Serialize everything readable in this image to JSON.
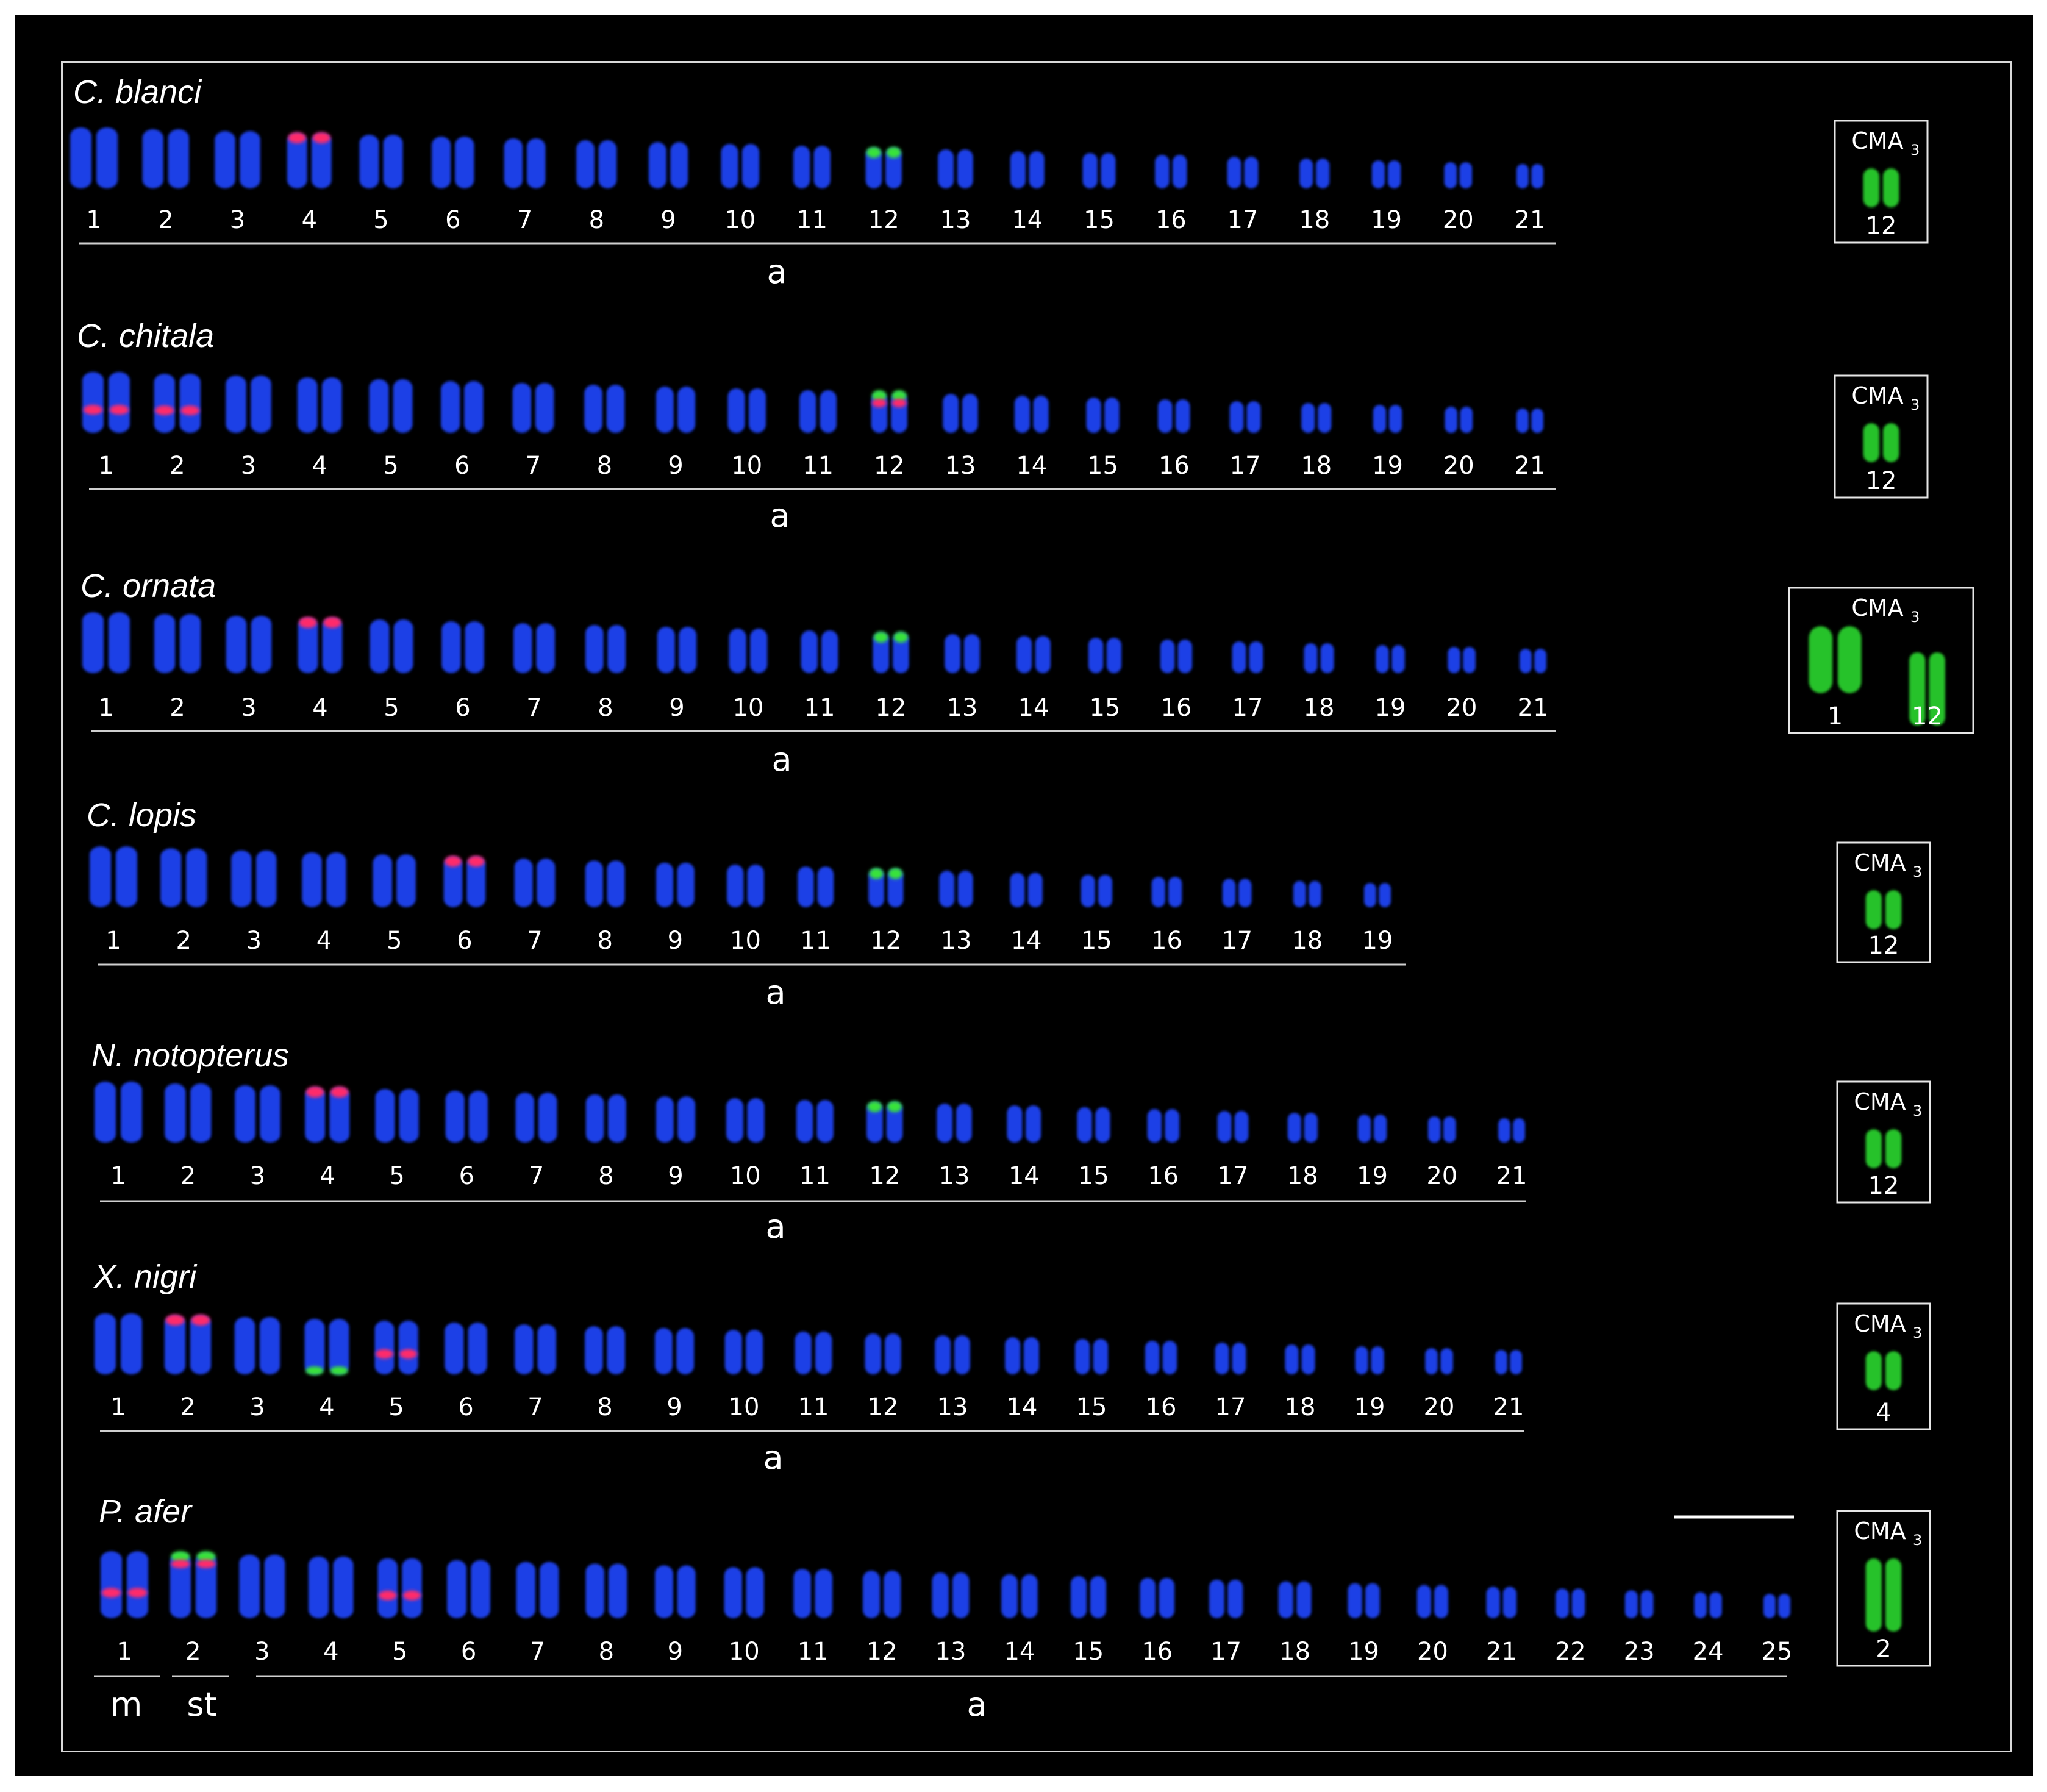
{
  "figure": {
    "colors": {
      "background": "#000000",
      "frame": "#d9d9d9",
      "text": "#ffffff",
      "chromosome_dapi": "#1f3fe6",
      "rDNA_5S_probe": "#ff2a6a",
      "rDNA_18S_probe": "#39e23a",
      "cma3": "#27c22a"
    },
    "rows": [
      {
        "species": "C. blanci",
        "group_labels": [
          {
            "label": "a",
            "from": 1,
            "to": 21
          }
        ],
        "pairs": [
          {
            "n": "1"
          },
          {
            "n": "2"
          },
          {
            "n": "3"
          },
          {
            "n": "4",
            "mark": "red-top"
          },
          {
            "n": "5"
          },
          {
            "n": "6"
          },
          {
            "n": "7"
          },
          {
            "n": "8"
          },
          {
            "n": "9"
          },
          {
            "n": "10"
          },
          {
            "n": "11"
          },
          {
            "n": "12",
            "mark": "green-top"
          },
          {
            "n": "13"
          },
          {
            "n": "14"
          },
          {
            "n": "15"
          },
          {
            "n": "16"
          },
          {
            "n": "17"
          },
          {
            "n": "18"
          },
          {
            "n": "19"
          },
          {
            "n": "20"
          },
          {
            "n": "21"
          }
        ],
        "cma3": {
          "title": "CMA",
          "subscript": "3",
          "chromosomes": [
            "12"
          ]
        }
      },
      {
        "species": "C. chitala",
        "group_labels": [
          {
            "label": "a",
            "from": 1,
            "to": 21
          }
        ],
        "pairs": [
          {
            "n": "1",
            "mark": "red-mid"
          },
          {
            "n": "2",
            "mark": "red-mid"
          },
          {
            "n": "3"
          },
          {
            "n": "4"
          },
          {
            "n": "5"
          },
          {
            "n": "6"
          },
          {
            "n": "7"
          },
          {
            "n": "8"
          },
          {
            "n": "9"
          },
          {
            "n": "10"
          },
          {
            "n": "11"
          },
          {
            "n": "12",
            "mark": "both-top"
          },
          {
            "n": "13"
          },
          {
            "n": "14"
          },
          {
            "n": "15"
          },
          {
            "n": "16"
          },
          {
            "n": "17"
          },
          {
            "n": "18"
          },
          {
            "n": "19"
          },
          {
            "n": "20"
          },
          {
            "n": "21"
          }
        ],
        "cma3": {
          "title": "CMA",
          "subscript": "3",
          "chromosomes": [
            "12"
          ]
        }
      },
      {
        "species": "C. ornata",
        "group_labels": [
          {
            "label": "a",
            "from": 1,
            "to": 21
          }
        ],
        "pairs": [
          {
            "n": "1"
          },
          {
            "n": "2"
          },
          {
            "n": "3"
          },
          {
            "n": "4",
            "mark": "red-top"
          },
          {
            "n": "5"
          },
          {
            "n": "6"
          },
          {
            "n": "7"
          },
          {
            "n": "8"
          },
          {
            "n": "9"
          },
          {
            "n": "10"
          },
          {
            "n": "11"
          },
          {
            "n": "12",
            "mark": "green-top"
          },
          {
            "n": "13"
          },
          {
            "n": "14"
          },
          {
            "n": "15"
          },
          {
            "n": "16"
          },
          {
            "n": "17"
          },
          {
            "n": "18"
          },
          {
            "n": "19"
          },
          {
            "n": "20"
          },
          {
            "n": "21"
          }
        ],
        "cma3": {
          "title": "CMA",
          "subscript": "3",
          "chromosomes": [
            "1",
            "12"
          ]
        }
      },
      {
        "species": "C. lopis",
        "group_labels": [
          {
            "label": "a",
            "from": 1,
            "to": 19
          }
        ],
        "pairs": [
          {
            "n": "1"
          },
          {
            "n": "2"
          },
          {
            "n": "3"
          },
          {
            "n": "4"
          },
          {
            "n": "5"
          },
          {
            "n": "6",
            "mark": "red-top"
          },
          {
            "n": "7"
          },
          {
            "n": "8"
          },
          {
            "n": "9"
          },
          {
            "n": "10"
          },
          {
            "n": "11"
          },
          {
            "n": "12",
            "mark": "green-top"
          },
          {
            "n": "13"
          },
          {
            "n": "14"
          },
          {
            "n": "15"
          },
          {
            "n": "16"
          },
          {
            "n": "17"
          },
          {
            "n": "18"
          },
          {
            "n": "19"
          }
        ],
        "cma3": {
          "title": "CMA",
          "subscript": "3",
          "chromosomes": [
            "12"
          ]
        }
      },
      {
        "species": "N. notopterus",
        "group_labels": [
          {
            "label": "a",
            "from": 1,
            "to": 21
          }
        ],
        "pairs": [
          {
            "n": "1"
          },
          {
            "n": "2"
          },
          {
            "n": "3"
          },
          {
            "n": "4",
            "mark": "red-top"
          },
          {
            "n": "5"
          },
          {
            "n": "6"
          },
          {
            "n": "7"
          },
          {
            "n": "8"
          },
          {
            "n": "9"
          },
          {
            "n": "10"
          },
          {
            "n": "11"
          },
          {
            "n": "12",
            "mark": "green-top"
          },
          {
            "n": "13"
          },
          {
            "n": "14"
          },
          {
            "n": "15"
          },
          {
            "n": "16"
          },
          {
            "n": "17"
          },
          {
            "n": "18"
          },
          {
            "n": "19"
          },
          {
            "n": "20"
          },
          {
            "n": "21"
          }
        ],
        "cma3": {
          "title": "CMA",
          "subscript": "3",
          "chromosomes": [
            "12"
          ]
        }
      },
      {
        "species": "X. nigri",
        "group_labels": [
          {
            "label": "a",
            "from": 1,
            "to": 21
          }
        ],
        "pairs": [
          {
            "n": "1"
          },
          {
            "n": "2",
            "mark": "red-top"
          },
          {
            "n": "3"
          },
          {
            "n": "4",
            "mark": "green-bottom"
          },
          {
            "n": "5",
            "mark": "red-mid"
          },
          {
            "n": "6"
          },
          {
            "n": "7"
          },
          {
            "n": "8"
          },
          {
            "n": "9"
          },
          {
            "n": "10"
          },
          {
            "n": "11"
          },
          {
            "n": "12"
          },
          {
            "n": "13"
          },
          {
            "n": "14"
          },
          {
            "n": "15"
          },
          {
            "n": "16"
          },
          {
            "n": "17"
          },
          {
            "n": "18"
          },
          {
            "n": "19"
          },
          {
            "n": "20"
          },
          {
            "n": "21"
          }
        ],
        "cma3": {
          "title": "CMA",
          "subscript": "3",
          "chromosomes": [
            "4"
          ]
        }
      },
      {
        "species": "P. afer",
        "group_labels": [
          {
            "label": "m",
            "from": 1,
            "to": 1
          },
          {
            "label": "st",
            "from": 2,
            "to": 2
          },
          {
            "label": "a",
            "from": 3,
            "to": 25
          }
        ],
        "pairs": [
          {
            "n": "1",
            "mark": "red-mid"
          },
          {
            "n": "2",
            "mark": "both-top"
          },
          {
            "n": "3"
          },
          {
            "n": "4"
          },
          {
            "n": "5",
            "mark": "red-mid"
          },
          {
            "n": "6"
          },
          {
            "n": "7"
          },
          {
            "n": "8"
          },
          {
            "n": "9"
          },
          {
            "n": "10"
          },
          {
            "n": "11"
          },
          {
            "n": "12"
          },
          {
            "n": "13"
          },
          {
            "n": "14"
          },
          {
            "n": "15"
          },
          {
            "n": "16"
          },
          {
            "n": "17"
          },
          {
            "n": "18"
          },
          {
            "n": "19"
          },
          {
            "n": "20"
          },
          {
            "n": "21"
          },
          {
            "n": "22"
          },
          {
            "n": "23"
          },
          {
            "n": "24"
          },
          {
            "n": "25"
          }
        ],
        "cma3": {
          "title": "CMA",
          "subscript": "3",
          "chromosomes": [
            "2"
          ]
        },
        "has_scale_bar": true
      }
    ]
  }
}
